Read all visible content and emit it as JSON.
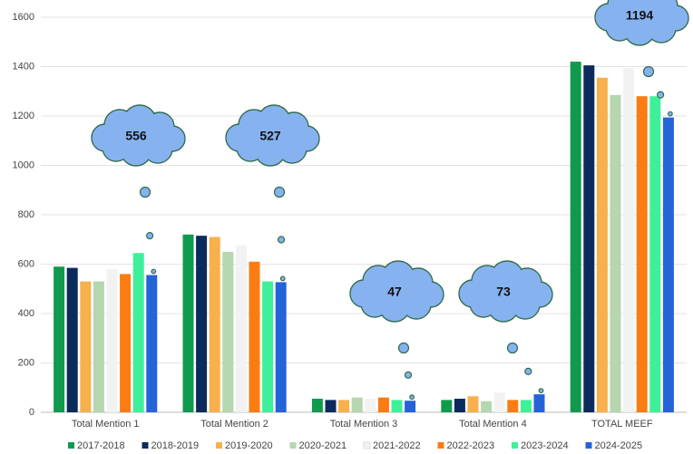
{
  "chart_data": {
    "type": "bar",
    "categories": [
      "Total Mention 1",
      "Total Mention 2",
      "Total Mention 3",
      "Total Mention 4",
      "TOTAL MEEF"
    ],
    "series": [
      {
        "name": "2017-2018",
        "color": "#109a4e",
        "values": [
          590,
          720,
          55,
          50,
          1420
        ]
      },
      {
        "name": "2018-2019",
        "color": "#0c2a5c",
        "values": [
          585,
          715,
          50,
          55,
          1405
        ]
      },
      {
        "name": "2019-2020",
        "color": "#f7b04b",
        "values": [
          530,
          710,
          50,
          65,
          1355
        ]
      },
      {
        "name": "2020-2021",
        "color": "#b5d6ae",
        "values": [
          530,
          650,
          60,
          45,
          1285
        ]
      },
      {
        "name": "2021-2022",
        "color": "#f2f2f2",
        "values": [
          580,
          675,
          55,
          80,
          1395
        ]
      },
      {
        "name": "2022-2023",
        "color": "#fb7c12",
        "values": [
          560,
          610,
          60,
          50,
          1280
        ]
      },
      {
        "name": "2023-2024",
        "color": "#3ff09a",
        "values": [
          645,
          530,
          50,
          50,
          1280
        ]
      },
      {
        "name": "2024-2025",
        "color": "#2563d9",
        "values": [
          556,
          527,
          47,
          73,
          1194
        ]
      }
    ],
    "ylim": [
      0,
      1600
    ],
    "yticks": [
      0,
      200,
      400,
      600,
      800,
      1000,
      1200,
      1400,
      1600
    ],
    "grid": true,
    "legend": "bottom"
  }
}
